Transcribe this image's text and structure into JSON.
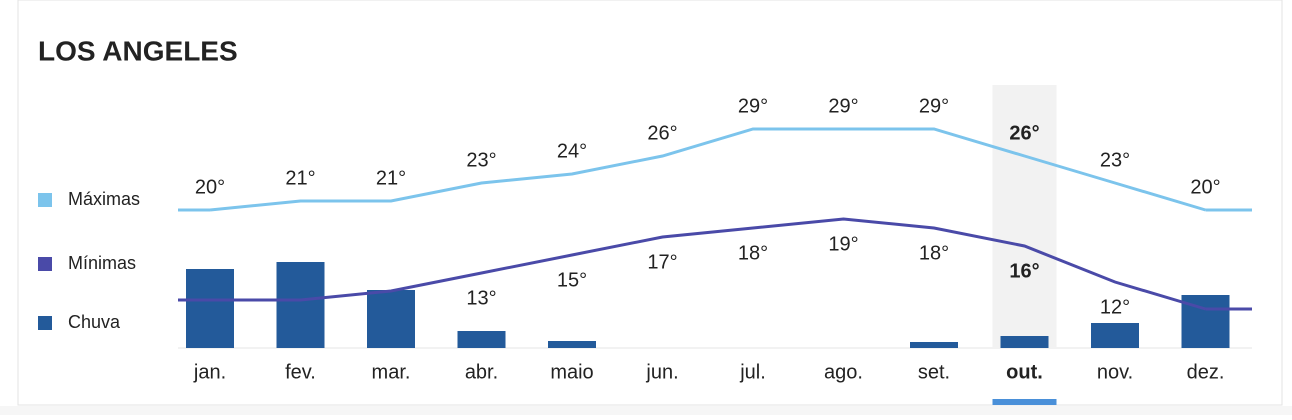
{
  "chart_data": {
    "type": "climate",
    "title": "LOS ANGELES",
    "categories": [
      "jan.",
      "fev.",
      "mar.",
      "abr.",
      "maio",
      "jun.",
      "jul.",
      "ago.",
      "set.",
      "out.",
      "nov.",
      "dez."
    ],
    "highlight_index": 9,
    "series": [
      {
        "name": "Máximas",
        "color": "#7cc4ec",
        "kind": "line",
        "values": [
          20,
          21,
          21,
          23,
          24,
          26,
          29,
          29,
          29,
          26,
          23,
          20
        ],
        "value_labels": [
          "20°",
          "21°",
          "21°",
          "23°",
          "24°",
          "26°",
          "29°",
          "29°",
          "29°",
          "26°",
          "23°",
          "20°"
        ]
      },
      {
        "name": "Mínimas",
        "color": "#4a4aa8",
        "kind": "line",
        "values": [
          10,
          10,
          11,
          13,
          15,
          17,
          18,
          19,
          18,
          16,
          12,
          9
        ],
        "value_labels": [
          null,
          null,
          null,
          "13°",
          "15°",
          "17°",
          "18°",
          "19°",
          "18°",
          "16°",
          "12°",
          null
        ]
      },
      {
        "name": "Chuva",
        "color": "#235a9a",
        "kind": "bar",
        "values": [
          79,
          86,
          58,
          17,
          7,
          0,
          0,
          0,
          6,
          12,
          25,
          53
        ]
      }
    ]
  }
}
